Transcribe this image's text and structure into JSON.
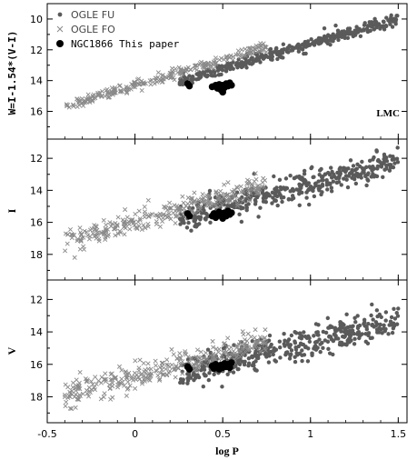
{
  "chart_data": {
    "type": "scatter",
    "shared_x": {
      "label": "log P",
      "lim": [
        -0.5,
        1.55
      ],
      "ticks": [
        -0.5,
        0,
        0.5,
        1,
        1.5
      ],
      "tick_labels": [
        "-0.5",
        "0",
        "0.5",
        "1",
        "1.5"
      ]
    },
    "legend": {
      "placement": "top-left",
      "entries": [
        {
          "label": "OGLE FU",
          "marker": "dot"
        },
        {
          "label": "OGLE FO",
          "marker": "cross"
        },
        {
          "label": "NGC1866 This paper",
          "marker": "big-dot"
        }
      ]
    },
    "colors": {
      "ogle_fu": "#5a5a5a",
      "ogle_fo": "#8a8a8a",
      "ngc1866": "#000000",
      "axes": "#000000"
    },
    "panels": [
      {
        "id": "W",
        "ylabel": "W=I-1.54*(V-I)",
        "ylim": [
          17.8,
          9.0
        ],
        "y_inverted": true,
        "ticks": [
          10,
          12,
          14,
          16
        ],
        "tick_labels": [
          "10",
          "12",
          "14",
          "16"
        ],
        "annotation": "LMC",
        "series": [
          {
            "name": "OGLE FU",
            "marker": "dot",
            "a": 14.9,
            "b": -3.28,
            "xrange": [
              0.25,
              1.5
            ],
            "scatter": 0.18,
            "n": 360
          },
          {
            "name": "OGLE FO",
            "marker": "cross",
            "a": 14.33,
            "b": -3.38,
            "xrange": [
              -0.4,
              0.75
            ],
            "scatter": 0.16,
            "n": 260
          },
          {
            "name": "NGC1866 This paper",
            "marker": "big-dot",
            "points": [
              [
                0.3,
                14.2
              ],
              [
                0.31,
                14.35
              ],
              [
                0.44,
                14.4
              ],
              [
                0.46,
                14.3
              ],
              [
                0.47,
                14.5
              ],
              [
                0.48,
                14.25
              ],
              [
                0.49,
                14.6
              ],
              [
                0.5,
                14.3
              ],
              [
                0.51,
                14.45
              ],
              [
                0.52,
                14.2
              ],
              [
                0.53,
                14.35
              ],
              [
                0.54,
                14.15
              ],
              [
                0.55,
                14.3
              ],
              [
                0.5,
                14.75
              ]
            ]
          }
        ]
      },
      {
        "id": "I",
        "ylabel": "I",
        "ylim": [
          19.6,
          10.8
        ],
        "y_inverted": true,
        "ticks": [
          12,
          14,
          16,
          18
        ],
        "tick_labels": [
          "12",
          "14",
          "16",
          "18"
        ],
        "series": [
          {
            "name": "OGLE FU",
            "marker": "dot",
            "a": 16.45,
            "b": -2.85,
            "xrange": [
              0.25,
              1.5
            ],
            "scatter": 0.4,
            "n": 420
          },
          {
            "name": "OGLE FO",
            "marker": "cross",
            "a": 15.95,
            "b": -3.05,
            "xrange": [
              -0.4,
              0.75
            ],
            "scatter": 0.35,
            "n": 300
          },
          {
            "name": "NGC1866 This paper",
            "marker": "big-dot",
            "points": [
              [
                0.3,
                15.45
              ],
              [
                0.31,
                15.6
              ],
              [
                0.44,
                15.6
              ],
              [
                0.45,
                15.45
              ],
              [
                0.46,
                15.7
              ],
              [
                0.47,
                15.5
              ],
              [
                0.48,
                15.35
              ],
              [
                0.49,
                15.6
              ],
              [
                0.5,
                15.5
              ],
              [
                0.51,
                15.4
              ],
              [
                0.52,
                15.6
              ],
              [
                0.53,
                15.3
              ],
              [
                0.54,
                15.5
              ],
              [
                0.55,
                15.4
              ],
              [
                0.5,
                15.75
              ]
            ]
          }
        ]
      },
      {
        "id": "V",
        "ylabel": "V",
        "ylim": [
          19.6,
          10.8
        ],
        "y_inverted": true,
        "ticks": [
          12,
          14,
          16,
          18
        ],
        "tick_labels": [
          "12",
          "14",
          "16",
          "18"
        ],
        "series": [
          {
            "name": "OGLE FU",
            "marker": "dot",
            "a": 17.2,
            "b": -2.55,
            "xrange": [
              0.25,
              1.5
            ],
            "scatter": 0.45,
            "n": 440
          },
          {
            "name": "OGLE FO",
            "marker": "cross",
            "a": 16.75,
            "b": -2.85,
            "xrange": [
              -0.4,
              0.75
            ],
            "scatter": 0.4,
            "n": 320
          },
          {
            "name": "NGC1866 This paper",
            "marker": "big-dot",
            "points": [
              [
                0.3,
                16.15
              ],
              [
                0.31,
                16.3
              ],
              [
                0.44,
                16.1
              ],
              [
                0.45,
                16.25
              ],
              [
                0.46,
                16.0
              ],
              [
                0.47,
                16.15
              ],
              [
                0.48,
                16.3
              ],
              [
                0.49,
                16.05
              ],
              [
                0.5,
                16.2
              ],
              [
                0.51,
                15.95
              ],
              [
                0.52,
                16.15
              ],
              [
                0.53,
                16.0
              ],
              [
                0.54,
                16.2
              ],
              [
                0.55,
                15.9
              ]
            ]
          }
        ]
      }
    ]
  }
}
